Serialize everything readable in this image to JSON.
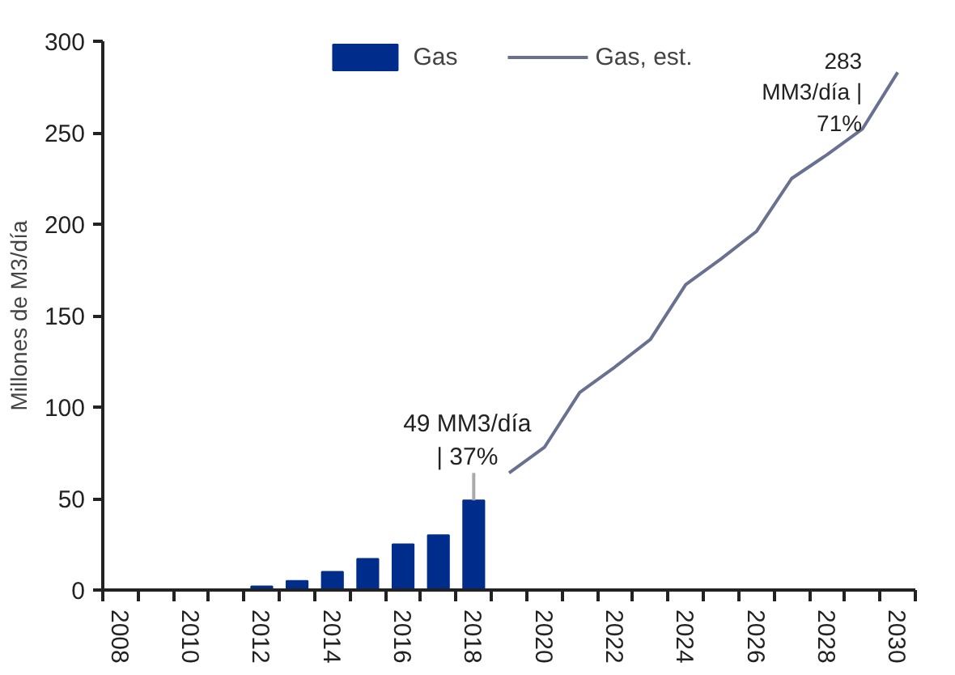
{
  "chart_data": {
    "type": "bar",
    "ylabel": "Millones de M3/día",
    "categories": [
      "2008",
      null,
      "2010",
      null,
      "2012",
      null,
      "2014",
      null,
      "2016",
      null,
      "2018",
      null,
      "2020",
      null,
      "2022",
      null,
      "2024",
      null,
      "2026",
      null,
      "2028",
      null,
      "2030"
    ],
    "ylim": [
      0,
      300
    ],
    "yticks": [
      0,
      50,
      100,
      150,
      200,
      250,
      300
    ],
    "grid": false,
    "legend": "top",
    "series": [
      {
        "name": "Gas",
        "color": "#002d8c",
        "values": [
          null,
          null,
          null,
          null,
          2,
          5,
          10,
          17,
          25,
          30,
          49,
          null,
          null,
          null,
          null,
          null,
          null,
          null,
          null,
          null,
          null,
          null,
          null
        ]
      },
      {
        "name": "Gas, est.",
        "type": "line",
        "color": "#6a7090",
        "values": [
          null,
          null,
          null,
          null,
          null,
          null,
          null,
          null,
          null,
          null,
          null,
          64,
          78,
          108,
          122,
          137,
          167,
          181,
          196,
          225,
          238,
          252,
          283
        ]
      }
    ],
    "annotations": [
      {
        "text": "49 MM3/día\n| 37%",
        "x": "2018",
        "y": 49
      },
      {
        "text": "283\nMM3/día |\n71%",
        "x": "2030",
        "y": 283
      }
    ]
  }
}
